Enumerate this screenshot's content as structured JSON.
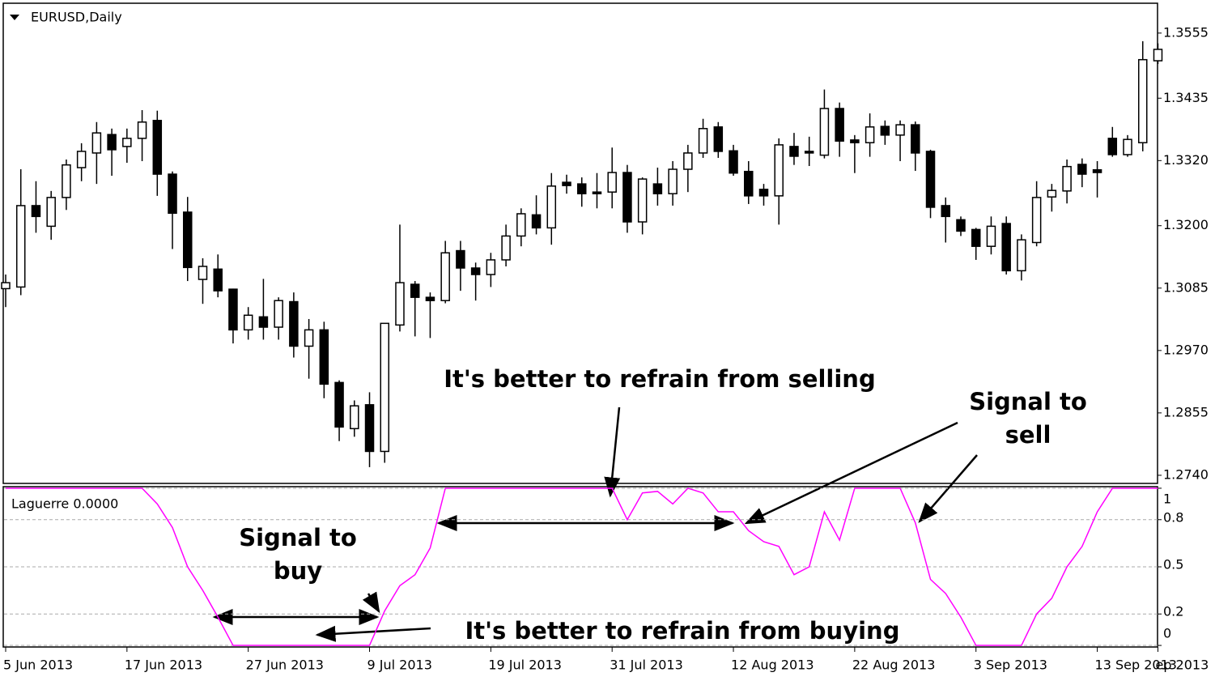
{
  "chart_data": [
    {
      "type": "candlestick",
      "title": "EURUSD,Daily",
      "categories": [
        "5 Jun 2013",
        null,
        null,
        null,
        null,
        null,
        null,
        null,
        "17 Jun 2013",
        null,
        null,
        null,
        null,
        null,
        null,
        null,
        "27 Jun 2013",
        null,
        null,
        null,
        null,
        null,
        null,
        null,
        "9 Jul 2013",
        null,
        null,
        null,
        null,
        null,
        null,
        null,
        "19 Jul 2013",
        null,
        null,
        null,
        null,
        null,
        null,
        null,
        "31 Jul 2013",
        null,
        null,
        null,
        null,
        null,
        null,
        null,
        "12 Aug 2013",
        null,
        null,
        null,
        null,
        null,
        null,
        null,
        "22 Aug 2013",
        null,
        null,
        null,
        null,
        null,
        null,
        null,
        "3 Sep 2013",
        null,
        null,
        null,
        null,
        null,
        null,
        null,
        "13 Sep 2013",
        null,
        null,
        null,
        "ep 2013"
      ],
      "open": [
        1.3084,
        1.3087,
        1.3237,
        1.3199,
        1.3252,
        1.3307,
        1.3334,
        1.3368,
        1.3346,
        1.3361,
        1.3394,
        1.3295,
        1.3225,
        1.3101,
        1.312,
        1.3083,
        1.3008,
        1.3032,
        1.3013,
        1.306,
        1.2978,
        1.3008,
        1.2911,
        1.2826,
        1.287,
        1.2784,
        1.3017,
        1.3092,
        1.3068,
        1.3062,
        1.3154,
        1.3122,
        1.311,
        1.3137,
        1.3181,
        1.322,
        1.3196,
        1.328,
        1.3277,
        1.3262,
        1.3262,
        1.3298,
        1.3207,
        1.3277,
        1.3259,
        1.3304,
        1.3334,
        1.3382,
        1.3338,
        1.33,
        1.3267,
        1.3255,
        1.3346,
        1.3337,
        1.333,
        1.3416,
        1.3358,
        1.3353,
        1.3383,
        1.3367,
        1.3386,
        1.3337,
        1.3237,
        1.3211,
        1.3193,
        1.3162,
        1.3204,
        1.3117,
        1.3169,
        1.3253,
        1.3264,
        1.3313,
        1.3303,
        1.3361,
        1.3331,
        1.3353,
        1.3504
      ],
      "high": [
        1.311,
        1.3304,
        1.3282,
        1.3264,
        1.3322,
        1.3352,
        1.3391,
        1.3379,
        1.3379,
        1.3413,
        1.3412,
        1.33,
        1.3253,
        1.314,
        1.3147,
        1.3084,
        1.305,
        1.3102,
        1.3068,
        1.3077,
        1.3028,
        1.3023,
        1.2915,
        1.2878,
        1.2893,
        1.302,
        1.3202,
        1.3098,
        1.3077,
        1.3172,
        1.3172,
        1.3132,
        1.315,
        1.3202,
        1.3232,
        1.3256,
        1.3297,
        1.3294,
        1.3289,
        1.3297,
        1.3344,
        1.3312,
        1.3289,
        1.3307,
        1.3319,
        1.3349,
        1.3397,
        1.3391,
        1.3349,
        1.3319,
        1.3277,
        1.3361,
        1.3371,
        1.3364,
        1.3451,
        1.3427,
        1.3367,
        1.3407,
        1.3394,
        1.3394,
        1.3392,
        1.334,
        1.3252,
        1.3217,
        1.3196,
        1.3217,
        1.3217,
        1.3184,
        1.3282,
        1.3277,
        1.3322,
        1.3324,
        1.3319,
        1.3382,
        1.3367,
        1.354,
        1.3536
      ],
      "low": [
        1.305,
        1.3072,
        1.3187,
        1.3174,
        1.3229,
        1.3282,
        1.3277,
        1.3292,
        1.3316,
        1.3319,
        1.3255,
        1.3157,
        1.3098,
        1.3056,
        1.3068,
        1.2983,
        1.299,
        1.299,
        1.299,
        1.2957,
        1.2918,
        1.2882,
        1.2803,
        1.2811,
        1.2755,
        1.2763,
        1.3005,
        1.2996,
        1.2993,
        1.3057,
        1.308,
        1.3062,
        1.3087,
        1.3125,
        1.3162,
        1.3184,
        1.3165,
        1.3259,
        1.3235,
        1.3232,
        1.3232,
        1.3187,
        1.3184,
        1.3237,
        1.3237,
        1.3262,
        1.3325,
        1.3325,
        1.3292,
        1.324,
        1.3237,
        1.3202,
        1.3312,
        1.331,
        1.3324,
        1.3327,
        1.3297,
        1.3327,
        1.3349,
        1.3319,
        1.3301,
        1.3214,
        1.3169,
        1.3181,
        1.3137,
        1.3147,
        1.311,
        1.3099,
        1.3162,
        1.3226,
        1.3241,
        1.3271,
        1.3252,
        1.3327,
        1.3327,
        1.3337,
        1.3498
      ],
      "close": [
        1.3095,
        1.3237,
        1.3217,
        1.3252,
        1.3312,
        1.3337,
        1.3371,
        1.334,
        1.3361,
        1.3391,
        1.3295,
        1.3223,
        1.3123,
        1.3125,
        1.308,
        1.3008,
        1.3035,
        1.3013,
        1.3062,
        1.2978,
        1.3008,
        1.2908,
        1.2829,
        1.2868,
        1.2784,
        1.302,
        1.3095,
        1.3068,
        1.3062,
        1.315,
        1.3122,
        1.311,
        1.3137,
        1.3181,
        1.3222,
        1.3196,
        1.3273,
        1.3274,
        1.3259,
        1.3259,
        1.3298,
        1.3207,
        1.3286,
        1.3259,
        1.3304,
        1.3334,
        1.3379,
        1.3337,
        1.3297,
        1.3255,
        1.3255,
        1.3349,
        1.3328,
        1.3334,
        1.3416,
        1.3356,
        1.3353,
        1.3382,
        1.3367,
        1.3386,
        1.3334,
        1.3234,
        1.3217,
        1.319,
        1.3162,
        1.3199,
        1.3117,
        1.3174,
        1.3252,
        1.3265,
        1.3309,
        1.3295,
        1.3298,
        1.3331,
        1.3359,
        1.3506,
        1.3525
      ],
      "up_color": "#ffffff",
      "down_color": "#000000",
      "color": "#000000",
      "ylim": [
        1.2725,
        1.361
      ],
      "yticks": [
        {
          "value": 1.274,
          "label": "1.2740"
        },
        1.2855,
        {
          "value": 1.297,
          "label": "1.2970"
        },
        1.3085,
        {
          "value": 1.32,
          "label": "1.3200"
        },
        {
          "value": 1.332,
          "label": "1.3320"
        },
        1.3435,
        1.3555
      ],
      "grid": false,
      "annotations": [
        [
          "It's better to refrain from selling"
        ],
        [
          "Signal to",
          "sell"
        ]
      ]
    },
    {
      "type": "line",
      "title": "Laguerre 0.0000",
      "color": "#ff00ff",
      "values": [
        1,
        1,
        1,
        1,
        1,
        1,
        1,
        1,
        1,
        1,
        0.9,
        0.75,
        0.5,
        0.35,
        0.18,
        0,
        0,
        0,
        0,
        0,
        0,
        0,
        0,
        0,
        0,
        0.22,
        0.38,
        0.45,
        0.62,
        1,
        1,
        1,
        1,
        1,
        1,
        1,
        1,
        1,
        1,
        1,
        1,
        0.8,
        0.97,
        0.98,
        0.9,
        1,
        0.97,
        0.85,
        0.85,
        0.73,
        0.66,
        0.63,
        0.45,
        0.5,
        0.85,
        0.67,
        1,
        1,
        1,
        1,
        0.78,
        0.42,
        0.33,
        0.18,
        0,
        0,
        0,
        0,
        0.2,
        0.3,
        0.5,
        0.63,
        0.85,
        1,
        1,
        1,
        1
      ],
      "ylim": [
        -0.01,
        1.01
      ],
      "yticks": [
        0,
        0.2,
        0.5,
        0.8,
        1
      ],
      "grid": true,
      "annotations": [
        [
          "Signal to",
          "buy"
        ],
        [
          "It's better to refrain from buying"
        ]
      ]
    }
  ]
}
